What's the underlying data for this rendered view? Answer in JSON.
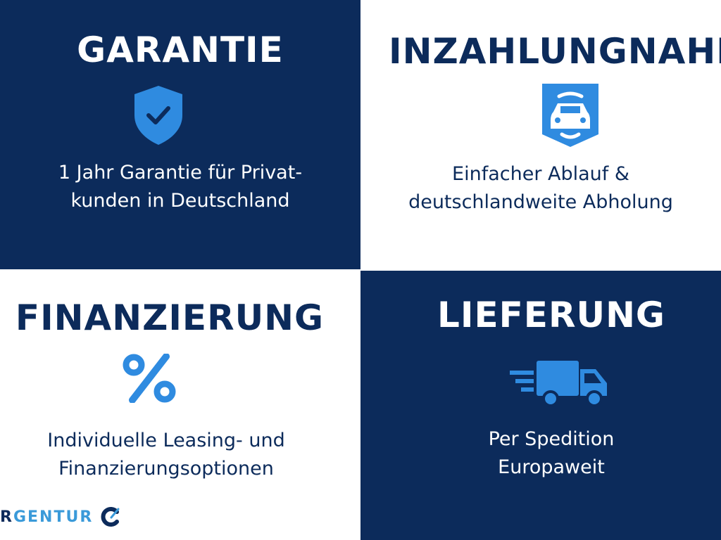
{
  "colors": {
    "navy": "#0c2b5b",
    "accent": "#2f8be0",
    "white": "#ffffff"
  },
  "panels": [
    {
      "title": "GARANTIE",
      "icon": "shield-check-icon",
      "lines": [
        "1 Jahr Garantie für Privat-",
        "kunden in Deutschland"
      ]
    },
    {
      "title": "INZAHLUNGNAHME",
      "icon": "car-icon",
      "lines": [
        "Einfacher Ablauf &",
        "deutschlandweite Abholung"
      ]
    },
    {
      "title": "FINANZIERUNG",
      "icon": "percent-icon",
      "lines": [
        "Individuelle Leasing- und",
        "Finanzierungsoptionen"
      ]
    },
    {
      "title": "LIEFERUNG",
      "icon": "delivery-truck-icon",
      "lines": [
        "Per Spedition",
        "Europaweit"
      ]
    }
  ],
  "logo": {
    "first": "R",
    "rest": "GENTUR"
  }
}
